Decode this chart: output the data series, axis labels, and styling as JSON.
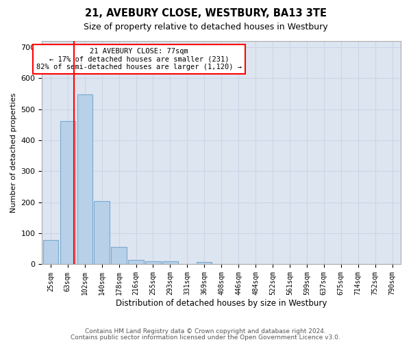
{
  "title1": "21, AVEBURY CLOSE, WESTBURY, BA13 3TE",
  "title2": "Size of property relative to detached houses in Westbury",
  "xlabel": "Distribution of detached houses by size in Westbury",
  "ylabel": "Number of detached properties",
  "bin_labels": [
    "25sqm",
    "63sqm",
    "102sqm",
    "140sqm",
    "178sqm",
    "216sqm",
    "255sqm",
    "293sqm",
    "331sqm",
    "369sqm",
    "408sqm",
    "446sqm",
    "484sqm",
    "522sqm",
    "561sqm",
    "599sqm",
    "637sqm",
    "675sqm",
    "714sqm",
    "752sqm",
    "790sqm"
  ],
  "bar_values": [
    78,
    462,
    548,
    204,
    57,
    15,
    10,
    10,
    0,
    8,
    0,
    0,
    0,
    0,
    0,
    0,
    0,
    0,
    0,
    0,
    0
  ],
  "bar_color": "#b8d0e8",
  "bar_edge_color": "#7aaacf",
  "annotation_text": "21 AVEBURY CLOSE: 77sqm\n← 17% of detached houses are smaller (231)\n82% of semi-detached houses are larger (1,120) →",
  "annotation_box_color": "white",
  "annotation_box_edge_color": "red",
  "ylim": [
    0,
    720
  ],
  "yticks": [
    0,
    100,
    200,
    300,
    400,
    500,
    600,
    700
  ],
  "grid_color": "#ccd5e8",
  "bg_color": "#dde5f0",
  "footer1": "Contains HM Land Registry data © Crown copyright and database right 2024.",
  "footer2": "Contains public sector information licensed under the Open Government Licence v3.0."
}
